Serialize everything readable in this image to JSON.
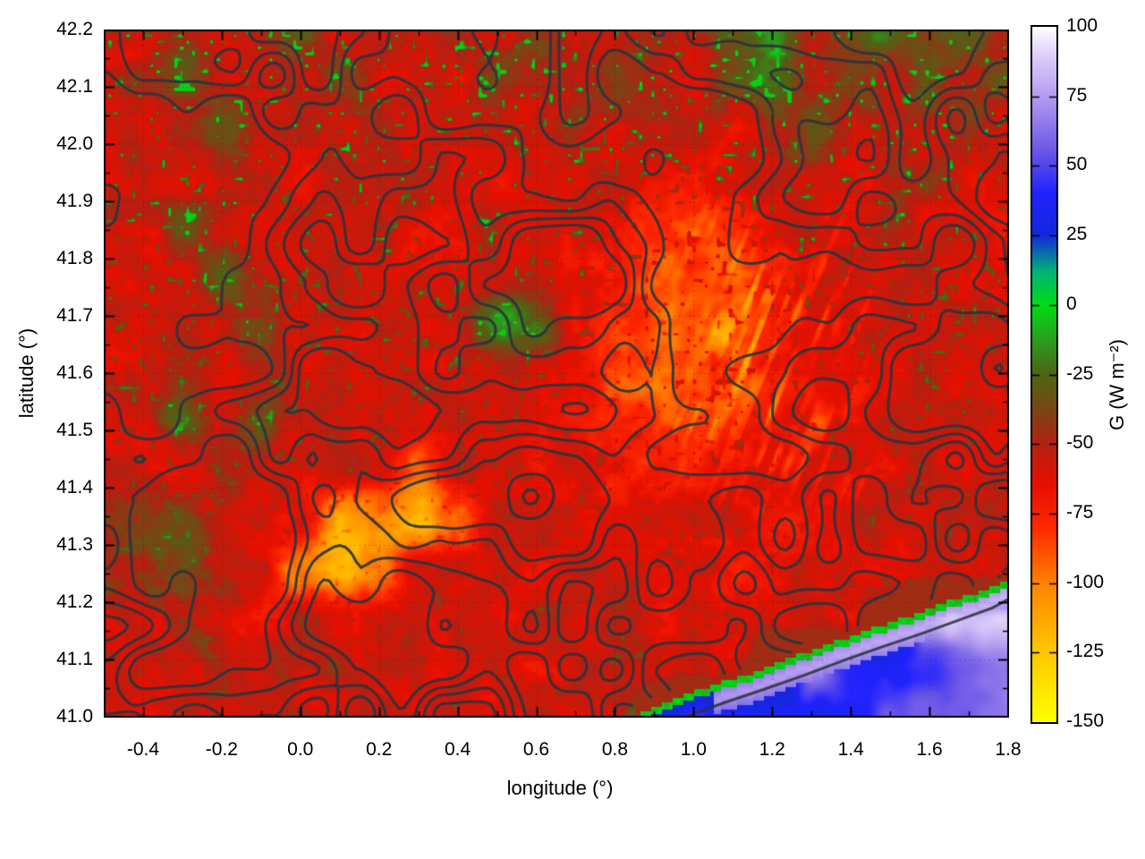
{
  "figure": {
    "background": "#ffffff"
  },
  "chart_data": {
    "type": "heatmap",
    "title": "",
    "xlabel": "longitude (°)",
    "ylabel": "latitude (°)",
    "xlim": [
      -0.5,
      1.8
    ],
    "ylim": [
      41.0,
      42.2
    ],
    "grid_lines": "dotted graticule at major ticks",
    "xticks": {
      "values": [
        -0.4,
        -0.2,
        0.0,
        0.2,
        0.4,
        0.6,
        0.8,
        1.0,
        1.2,
        1.4,
        1.6,
        1.8
      ],
      "labels": [
        "-0.4",
        "-0.2",
        "0.0",
        "0.2",
        "0.4",
        "0.6",
        "0.8",
        "1.0",
        "1.2",
        "1.4",
        "1.6",
        "1.8"
      ],
      "minor_step": 0.1
    },
    "yticks": {
      "values": [
        41.0,
        41.1,
        41.2,
        41.3,
        41.4,
        41.5,
        41.6,
        41.7,
        41.8,
        41.9,
        42.0,
        42.1,
        42.2
      ],
      "labels": [
        "41.0",
        "41.1",
        "41.2",
        "41.3",
        "41.4",
        "41.5",
        "41.6",
        "41.7",
        "41.8",
        "41.9",
        "42.0",
        "42.1",
        "42.2"
      ],
      "minor_step": 0.05
    },
    "colorbar": {
      "label": "G (W m⁻²)",
      "range": [
        -150,
        100
      ],
      "ticks": {
        "values": [
          100,
          75,
          50,
          25,
          0,
          -25,
          -50,
          -75,
          -100,
          -125,
          -150
        ],
        "labels": [
          "100",
          "75",
          "50",
          "25",
          "0",
          "-25",
          "-50",
          "-75",
          "-100",
          "-125",
          "-150"
        ]
      },
      "stops": [
        [
          -150,
          "#ffff00"
        ],
        [
          -125,
          "#ffc800"
        ],
        [
          -100,
          "#ff8200"
        ],
        [
          -80,
          "#ff2800"
        ],
        [
          -65,
          "#e81000"
        ],
        [
          -50,
          "#b42012"
        ],
        [
          -38,
          "#7a4616"
        ],
        [
          -25,
          "#4f6414"
        ],
        [
          -12,
          "#2aa01e"
        ],
        [
          0,
          "#00dc14"
        ],
        [
          12,
          "#00b478"
        ],
        [
          25,
          "#1428dc"
        ],
        [
          40,
          "#2222ff"
        ],
        [
          55,
          "#6a55e8"
        ],
        [
          75,
          "#b49cf0"
        ],
        [
          90,
          "#ddd0fa"
        ],
        [
          100,
          "#ffffff"
        ]
      ]
    },
    "grid": {
      "description": "coarse estimate of plotted G field (W m-2); row 0 = lat 42.2 (north), row 14 = lat 41.0 (south); col 0 = lon -0.5, col 23 = lon 1.8",
      "ncols": 24,
      "nrows": 15,
      "values_G_Wm2": [
        [
          -55,
          -62,
          -45,
          -60,
          -55,
          -35,
          -62,
          -55,
          -60,
          -48,
          -60,
          -35,
          -55,
          -62,
          -45,
          -55,
          -30,
          -18,
          -50,
          -35,
          -22,
          -45,
          -28,
          -48
        ],
        [
          -60,
          -48,
          -30,
          -55,
          -62,
          -52,
          -38,
          -60,
          -55,
          -62,
          -42,
          -55,
          -60,
          -35,
          -55,
          -60,
          -38,
          -25,
          -55,
          -38,
          -52,
          -30,
          -48,
          -35
        ],
        [
          -55,
          -62,
          -55,
          -35,
          -60,
          -55,
          -62,
          -48,
          -60,
          -55,
          -52,
          -62,
          -42,
          -60,
          -55,
          -48,
          -62,
          -45,
          -35,
          -60,
          -48,
          -55,
          -40,
          -60
        ],
        [
          -62,
          -52,
          -60,
          -55,
          -48,
          -62,
          -55,
          -60,
          -52,
          -55,
          -62,
          -55,
          -60,
          -52,
          -65,
          -72,
          -62,
          -55,
          -48,
          -62,
          -52,
          -45,
          -60,
          -55
        ],
        [
          -55,
          -60,
          -35,
          -55,
          -62,
          -52,
          -60,
          -55,
          -62,
          -60,
          -55,
          -62,
          -58,
          -68,
          -80,
          -88,
          -80,
          -62,
          -55,
          -60,
          -48,
          -60,
          -55,
          -62
        ],
        [
          -60,
          -55,
          -62,
          -28,
          -55,
          -60,
          -55,
          -62,
          -55,
          -60,
          -62,
          -55,
          -62,
          -72,
          -88,
          -82,
          -88,
          -72,
          -60,
          -55,
          -62,
          -52,
          -60,
          -55
        ],
        [
          -55,
          -62,
          -55,
          -60,
          -35,
          -60,
          -55,
          -55,
          -62,
          -55,
          -15,
          -25,
          -66,
          -80,
          -88,
          -92,
          -82,
          -75,
          -62,
          -60,
          -55,
          -62,
          -55,
          -60
        ],
        [
          -62,
          -55,
          -48,
          -62,
          -55,
          -55,
          -60,
          -62,
          -55,
          -60,
          -55,
          -62,
          -70,
          -86,
          -92,
          -86,
          -80,
          -72,
          -65,
          -55,
          -60,
          -55,
          -62,
          -55
        ],
        [
          -55,
          -60,
          -28,
          -55,
          -38,
          -60,
          -55,
          -55,
          -62,
          -55,
          -60,
          -62,
          -66,
          -80,
          -86,
          -80,
          -75,
          -66,
          -60,
          -60,
          -55,
          -62,
          -55,
          -60
        ],
        [
          -60,
          -55,
          -62,
          -48,
          -60,
          -62,
          -55,
          -58,
          -95,
          -60,
          -55,
          -62,
          -62,
          -72,
          -76,
          -72,
          -66,
          -60,
          -55,
          -66,
          -60,
          -55,
          -62,
          -55
        ],
        [
          -48,
          -42,
          -38,
          -55,
          -60,
          -62,
          -118,
          -108,
          -128,
          -90,
          -60,
          -55,
          -62,
          -66,
          -62,
          -60,
          -55,
          -70,
          -62,
          -55,
          -60,
          -62,
          -55,
          -60
        ],
        [
          -45,
          -40,
          -42,
          -55,
          -60,
          -108,
          -125,
          -95,
          -58,
          -60,
          -55,
          -62,
          -55,
          -60,
          -66,
          -55,
          -70,
          -62,
          -55,
          -66,
          -60,
          -55,
          -60,
          -45
        ],
        [
          -55,
          -62,
          -55,
          -60,
          -68,
          -55,
          -62,
          -55,
          -60,
          -55,
          -62,
          -55,
          -60,
          -55,
          -62,
          -60,
          -55,
          -62,
          -58,
          -60,
          -20,
          80,
          85,
          88
        ],
        [
          -60,
          -55,
          -62,
          -52,
          -55,
          -60,
          -55,
          -62,
          -55,
          -60,
          -55,
          -62,
          -55,
          -60,
          -58,
          -55,
          -62,
          -5,
          75,
          38,
          32,
          40,
          55,
          62
        ],
        [
          -55,
          -62,
          -55,
          -60,
          -60,
          -55,
          -62,
          -55,
          -60,
          -55,
          -62,
          -55,
          -60,
          -58,
          -5,
          55,
          35,
          30,
          32,
          40,
          50,
          58,
          65,
          70
        ]
      ]
    },
    "overlays": {
      "contours": "dark slate terrain contour lines over land",
      "contour_color": "#2c333e",
      "coast_fringe": "thin bright-green strip along coastline",
      "coastline_lonlat": [
        [
          0.85,
          41.0
        ],
        [
          0.95,
          41.028
        ],
        [
          1.05,
          41.052
        ],
        [
          1.15,
          41.072
        ],
        [
          1.25,
          41.1
        ],
        [
          1.35,
          41.125
        ],
        [
          1.45,
          41.15
        ],
        [
          1.55,
          41.172
        ],
        [
          1.65,
          41.198
        ],
        [
          1.72,
          41.212
        ],
        [
          1.8,
          41.235
        ]
      ],
      "offshore_contour_lonlat": [
        [
          0.98,
          41.0
        ],
        [
          1.08,
          41.025
        ],
        [
          1.18,
          41.048
        ],
        [
          1.28,
          41.072
        ],
        [
          1.38,
          41.098
        ],
        [
          1.48,
          41.122
        ],
        [
          1.58,
          41.145
        ],
        [
          1.68,
          41.17
        ],
        [
          1.76,
          41.19
        ],
        [
          1.8,
          41.205
        ]
      ]
    },
    "style": {
      "frame_color": "#000000",
      "grid_dot_color": "rgba(20,20,20,0.45)",
      "sea_region": "bottom-right corner, values +26 to +90 (blue to pale violet)",
      "dominant_land_value": -60
    }
  }
}
